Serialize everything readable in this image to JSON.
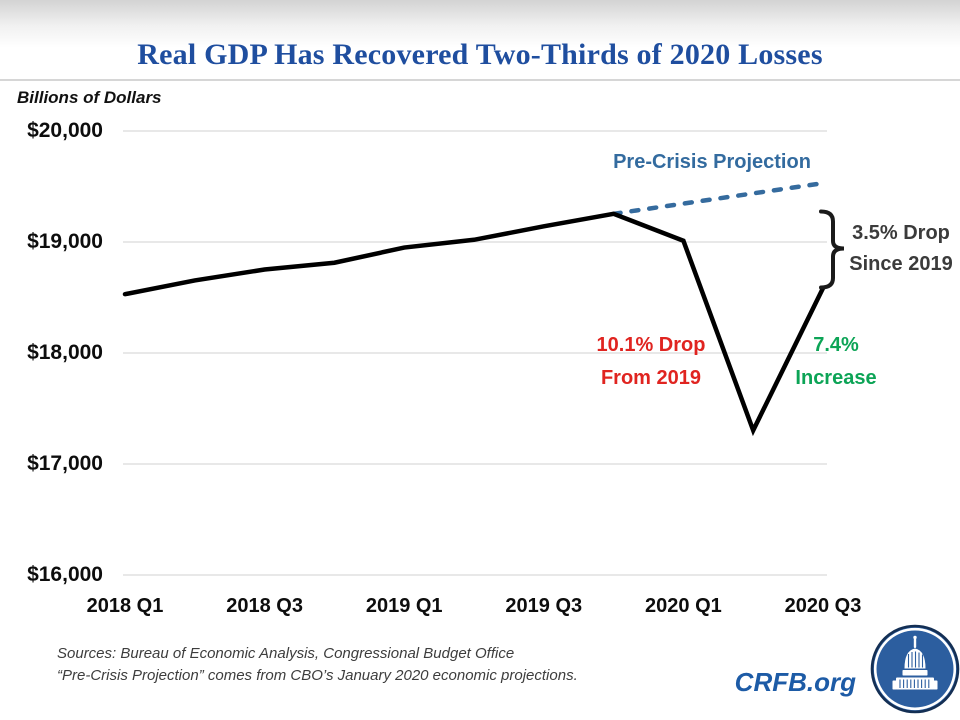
{
  "header": {
    "title": "Real GDP Has Recovered Two-Thirds of 2020 Losses"
  },
  "chart_data": {
    "type": "line",
    "title": "Real GDP Has Recovered Two-Thirds of 2020 Losses",
    "units_label": "Billions of Dollars",
    "x": [
      "2018 Q1",
      "2018 Q2",
      "2018 Q3",
      "2018 Q4",
      "2019 Q1",
      "2019 Q2",
      "2019 Q3",
      "2019 Q4",
      "2020 Q1",
      "2020 Q2",
      "2020 Q3"
    ],
    "x_axis": {
      "ticks": [
        {
          "index": 0,
          "label": "2018 Q1"
        },
        {
          "index": 2,
          "label": "2018 Q3"
        },
        {
          "index": 4,
          "label": "2019 Q1"
        },
        {
          "index": 6,
          "label": "2019 Q3"
        },
        {
          "index": 8,
          "label": "2020 Q1"
        },
        {
          "index": 10,
          "label": "2020 Q3"
        }
      ]
    },
    "y_axis": {
      "range": [
        16000,
        20000
      ],
      "ticks": [
        {
          "value": 20000,
          "label": "$20,000"
        },
        {
          "value": 19000,
          "label": "$19,000"
        },
        {
          "value": 18000,
          "label": "$18,000"
        },
        {
          "value": 17000,
          "label": "$17,000"
        },
        {
          "value": 16000,
          "label": "$16,000"
        }
      ]
    },
    "grid": true,
    "grid_color": "#d9d9d9",
    "series": [
      {
        "name": "Pre-Crisis Projection",
        "color": "#356b9e",
        "width": 4.5,
        "dash": "7 11",
        "start_index": 7,
        "values": [
          19254,
          19346,
          19438,
          19530
        ]
      },
      {
        "name": "Real GDP",
        "color": "#000000",
        "width": 4.5,
        "start_index": 0,
        "values": [
          18530,
          18654,
          18752,
          18813,
          18950,
          19020,
          19141,
          19254,
          19011,
          17303,
          18584
        ]
      }
    ],
    "annotations": [
      {
        "line1": "Pre-Crisis Projection",
        "line2": "",
        "color": "#336b9f"
      },
      {
        "line1": "10.1% Drop",
        "line2": "From 2019",
        "color": "#e02420"
      },
      {
        "line1": "7.4%",
        "line2": "Increase",
        "color": "#0ca456"
      },
      {
        "line1": "3.5% Drop",
        "line2": "Since 2019",
        "color": "#3b3b3b"
      }
    ],
    "legend": "none"
  },
  "footer": {
    "source_line1": "Sources: Bureau of Economic Analysis, Congressional Budget Office",
    "source_line2": "“Pre-Crisis Projection” comes from CBO’s January 2020 economic projections.",
    "brand": "CRFB.org"
  },
  "colors": {
    "title_blue": "#1f4e9f",
    "brand_blue": "#1d5ba6",
    "logo_disc": "#2c5e9f",
    "logo_ring": "#142f54",
    "brace_black": "#1a1a1a"
  }
}
